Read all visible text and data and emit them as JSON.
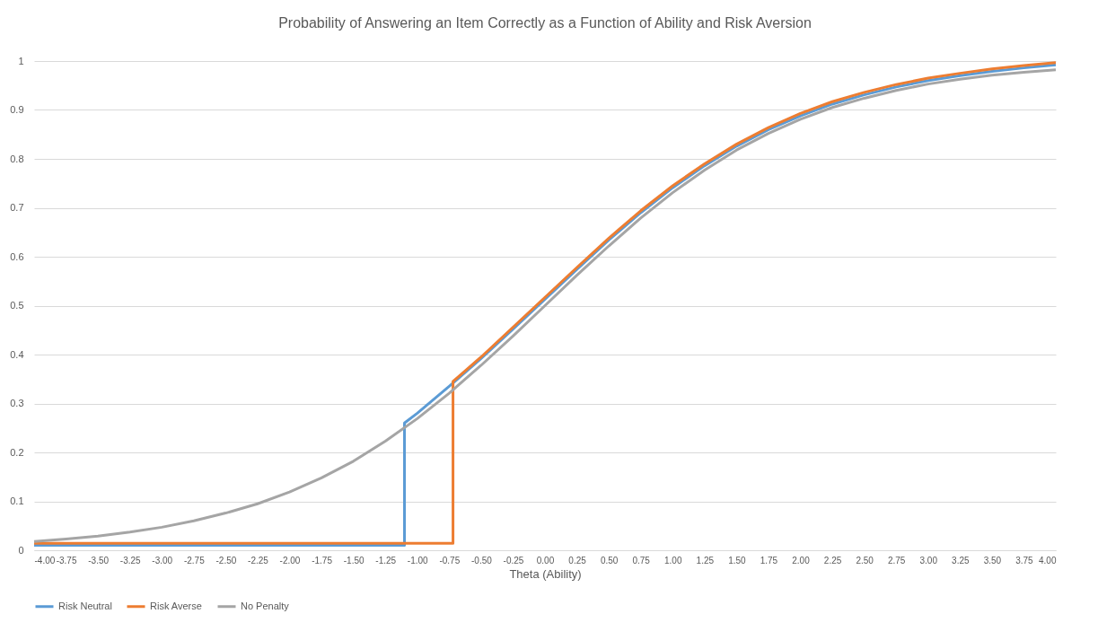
{
  "chart_data": {
    "type": "line",
    "title": "Probability of Answering an Item Correctly as a Function of Ability and Risk Aversion",
    "xlabel": "Theta (Ability)",
    "xlim": [
      -4,
      4
    ],
    "xticks": [
      {
        "value": -4,
        "label": "-4.00"
      },
      {
        "value": -3.75,
        "label": "-3.75"
      },
      {
        "value": -3.5,
        "label": "-3.50"
      },
      {
        "value": -3.25,
        "label": "-3.25"
      },
      {
        "value": -3,
        "label": "-3.00"
      },
      {
        "value": -2.75,
        "label": "-2.75"
      },
      {
        "value": -2.5,
        "label": "-2.50"
      },
      {
        "value": -2.25,
        "label": "-2.25"
      },
      {
        "value": -2,
        "label": "-2.00"
      },
      {
        "value": -1.75,
        "label": "-1.75"
      },
      {
        "value": -1.5,
        "label": "-1.50"
      },
      {
        "value": -1.25,
        "label": "-1.25"
      },
      {
        "value": -1,
        "label": "-1.00"
      },
      {
        "value": -0.75,
        "label": "-0.75"
      },
      {
        "value": -0.5,
        "label": "-0.50"
      },
      {
        "value": -0.25,
        "label": "-0.25"
      },
      {
        "value": 0,
        "label": "0.00"
      },
      {
        "value": 0.25,
        "label": "0.25"
      },
      {
        "value": 0.5,
        "label": "0.50"
      },
      {
        "value": 0.75,
        "label": "0.75"
      },
      {
        "value": 1,
        "label": "1.00"
      },
      {
        "value": 1.25,
        "label": "1.25"
      },
      {
        "value": 1.5,
        "label": "1.50"
      },
      {
        "value": 1.75,
        "label": "1.75"
      },
      {
        "value": 2,
        "label": "2.00"
      },
      {
        "value": 2.25,
        "label": "2.25"
      },
      {
        "value": 2.5,
        "label": "2.50"
      },
      {
        "value": 2.75,
        "label": "2.75"
      },
      {
        "value": 3,
        "label": "3.00"
      },
      {
        "value": 3.25,
        "label": "3.25"
      },
      {
        "value": 3.5,
        "label": "3.50"
      },
      {
        "value": 3.75,
        "label": "3.75"
      },
      {
        "value": 4,
        "label": "4.00"
      }
    ],
    "ylim": [
      0,
      1
    ],
    "yticks": [
      0,
      0.1,
      0.2,
      0.3,
      0.4,
      0.5,
      0.6,
      0.7,
      0.8,
      0.9,
      1
    ],
    "grid": "y",
    "legend": "bottom",
    "marker": "none",
    "line_style": "solid",
    "series": [
      {
        "name": "Risk Neutral",
        "color": "#5b9bd5",
        "x": [
          -4,
          -1.1,
          -1.1,
          -1,
          -0.75,
          -0.5,
          -0.25,
          0,
          0.25,
          0.5,
          0.75,
          1,
          1.25,
          1.5,
          1.75,
          2,
          2.25,
          2.5,
          2.75,
          3,
          3.25,
          3.5,
          3.75,
          4
        ],
        "values": [
          0.01,
          0.01,
          0.26,
          0.28,
          0.335,
          0.392,
          0.452,
          0.513,
          0.574,
          0.634,
          0.69,
          0.741,
          0.786,
          0.826,
          0.86,
          0.888,
          0.912,
          0.931,
          0.947,
          0.96,
          0.97,
          0.979,
          0.986,
          0.992
        ]
      },
      {
        "name": "Risk Averse",
        "color": "#ed7d31",
        "x": [
          -4,
          -0.72,
          -0.72,
          -0.5,
          -0.25,
          0,
          0.25,
          0.5,
          0.75,
          1,
          1.25,
          1.5,
          1.75,
          2,
          2.25,
          2.5,
          2.75,
          3,
          3.25,
          3.5,
          3.75,
          4
        ],
        "values": [
          0.014,
          0.014,
          0.345,
          0.395,
          0.456,
          0.517,
          0.578,
          0.638,
          0.694,
          0.745,
          0.79,
          0.83,
          0.864,
          0.893,
          0.917,
          0.936,
          0.952,
          0.965,
          0.975,
          0.984,
          0.991,
          0.997
        ]
      },
      {
        "name": "No Penalty",
        "color": "#a5a5a5",
        "x": [
          -4,
          -3.75,
          -3.5,
          -3.25,
          -3,
          -2.75,
          -2.5,
          -2.25,
          -2,
          -1.75,
          -1.5,
          -1.25,
          -1,
          -0.75,
          -0.5,
          -0.25,
          0,
          0.25,
          0.5,
          0.75,
          1,
          1.25,
          1.5,
          1.75,
          2,
          2.25,
          2.5,
          2.75,
          3,
          3.25,
          3.5,
          3.75,
          4
        ],
        "values": [
          0.018,
          0.023,
          0.029,
          0.037,
          0.047,
          0.06,
          0.076,
          0.095,
          0.119,
          0.148,
          0.182,
          0.223,
          0.269,
          0.321,
          0.378,
          0.438,
          0.5,
          0.562,
          0.622,
          0.679,
          0.731,
          0.777,
          0.818,
          0.852,
          0.881,
          0.905,
          0.924,
          0.94,
          0.953,
          0.963,
          0.971,
          0.977,
          0.982
        ]
      }
    ]
  }
}
